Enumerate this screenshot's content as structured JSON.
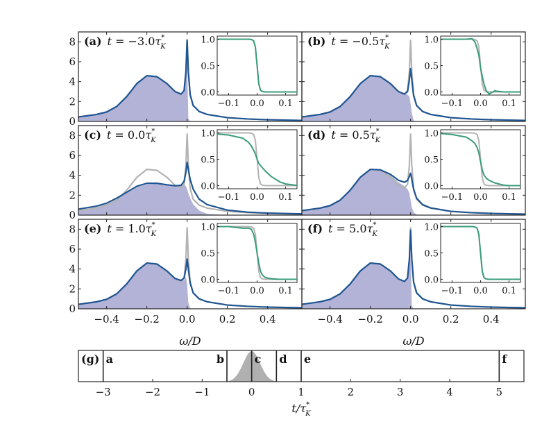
{
  "colors": {
    "equilibrium": "#b3b3b3",
    "spectral": "#1f5592",
    "occupied_fill": "#b3b3d8",
    "distribution": "#3a9c7a",
    "pulse": "#b0b0b0"
  },
  "chart_data": [
    {
      "type": "line",
      "description_axes": {
        "xlabel": "ω/D",
        "xlim": [
          -0.54,
          0.57
        ],
        "ylim": [
          0,
          9
        ],
        "xticks": [
          "−0.4",
          "−0.2",
          "0.0",
          "0.2",
          "0.4"
        ],
        "xtick_values": [
          -0.4,
          -0.2,
          0.0,
          0.2,
          0.4
        ],
        "yticks": [
          "0",
          "2",
          "4",
          "6",
          "8"
        ],
        "ytick_values": [
          0,
          2,
          4,
          6,
          8
        ]
      },
      "inset_axes": {
        "xlim": [
          -0.14,
          0.14
        ],
        "ylim": [
          -0.06,
          1.06
        ],
        "xticks": [
          "−0.1",
          "0.0",
          "0.1"
        ],
        "xtick_values": [
          -0.1,
          0.0,
          0.1
        ],
        "yticks": [
          "0.0",
          "0.5",
          "1.0"
        ],
        "ytick_values": [
          0.0,
          0.5,
          1.0
        ]
      },
      "x": [
        -0.54,
        -0.45,
        -0.4,
        -0.35,
        -0.3,
        -0.25,
        -0.2,
        -0.15,
        -0.1,
        -0.06,
        -0.03,
        -0.015,
        -0.006,
        0,
        0.006,
        0.015,
        0.03,
        0.06,
        0.1,
        0.2,
        0.3,
        0.4,
        0.57
      ],
      "equilibrium": [
        0.45,
        0.7,
        0.95,
        1.5,
        2.5,
        3.8,
        4.6,
        4.5,
        3.8,
        3.0,
        2.75,
        3.1,
        5.0,
        8.2,
        5.0,
        2.7,
        1.6,
        1.0,
        0.7,
        0.38,
        0.25,
        0.17,
        0.1
      ],
      "inset_x": [
        -0.14,
        -0.1,
        -0.05,
        -0.03,
        -0.02,
        -0.012,
        -0.006,
        0,
        0.006,
        0.012,
        0.02,
        0.03,
        0.05,
        0.08,
        0.1,
        0.14
      ],
      "inset_equilibrium": [
        1,
        1,
        1,
        1,
        0.995,
        0.97,
        0.85,
        0.5,
        0.15,
        0.03,
        0.005,
        0,
        0,
        0,
        0,
        0
      ],
      "panels": [
        {
          "label": "(a)",
          "time": "−3.0",
          "spectral": [
            0.45,
            0.7,
            0.95,
            1.5,
            2.5,
            3.8,
            4.6,
            4.5,
            3.8,
            3.0,
            2.75,
            3.1,
            5.0,
            8.2,
            5.0,
            2.7,
            1.6,
            1.0,
            0.7,
            0.38,
            0.25,
            0.17,
            0.1
          ],
          "occupied": [
            0.45,
            0.7,
            0.95,
            1.5,
            2.5,
            3.8,
            4.6,
            4.5,
            3.8,
            3.0,
            2.75,
            3.1,
            5.0,
            6.0,
            0.3,
            0,
            0,
            0,
            0,
            0,
            0,
            0,
            0
          ],
          "distribution": [
            1,
            1,
            1,
            1,
            0.995,
            0.97,
            0.85,
            0.5,
            0.15,
            0.03,
            0.005,
            0,
            0,
            0,
            0,
            0
          ]
        },
        {
          "label": "(b)",
          "time": "−0.5",
          "spectral": [
            0.45,
            0.7,
            0.95,
            1.5,
            2.5,
            3.8,
            4.6,
            4.5,
            3.8,
            3.0,
            2.75,
            3.0,
            4.2,
            5.3,
            4.2,
            2.6,
            1.6,
            1.0,
            0.7,
            0.38,
            0.25,
            0.17,
            0.1
          ],
          "occupied": [
            0.45,
            0.7,
            0.95,
            1.5,
            2.5,
            3.8,
            4.6,
            4.5,
            3.8,
            3.0,
            2.75,
            2.7,
            2.5,
            1.8,
            0.9,
            0.1,
            0,
            0,
            0,
            0,
            0,
            0,
            0
          ],
          "distribution": [
            1,
            1,
            1,
            1.01,
            0.95,
            0.82,
            0.7,
            0.45,
            0.3,
            0.15,
            0.02,
            -0.04,
            0.02,
            0,
            0,
            0
          ]
        },
        {
          "label": "(c)",
          "time": "0.0",
          "spectral": [
            0.6,
            0.9,
            1.2,
            1.7,
            2.3,
            2.9,
            3.2,
            3.2,
            3.05,
            2.95,
            3.0,
            3.4,
            4.3,
            5.3,
            4.6,
            3.6,
            2.6,
            1.6,
            1.05,
            0.5,
            0.3,
            0.2,
            0.12
          ],
          "occupied": [
            0.5,
            0.8,
            1.1,
            1.6,
            2.2,
            2.8,
            3.1,
            3.15,
            3.0,
            2.95,
            3.0,
            3.1,
            2.9,
            2.6,
            2.2,
            1.7,
            1.1,
            0.45,
            0.12,
            0,
            0,
            0,
            0
          ],
          "distribution": [
            0.98,
            0.96,
            0.9,
            0.82,
            0.75,
            0.67,
            0.6,
            0.5,
            0.42,
            0.38,
            0.33,
            0.27,
            0.17,
            0.07,
            0.03,
            0.005
          ]
        },
        {
          "label": "(d)",
          "time": "0.5",
          "spectral": [
            0.45,
            0.7,
            0.95,
            1.5,
            2.5,
            3.8,
            4.6,
            4.55,
            4.1,
            3.5,
            3.3,
            3.5,
            3.9,
            4.2,
            3.6,
            2.6,
            1.7,
            1.05,
            0.72,
            0.38,
            0.25,
            0.17,
            0.1
          ],
          "occupied": [
            0.45,
            0.7,
            0.95,
            1.5,
            2.5,
            3.8,
            4.6,
            4.5,
            4.0,
            3.3,
            2.9,
            2.6,
            2.2,
            1.5,
            0.8,
            0.3,
            0.05,
            0,
            0,
            0,
            0,
            0,
            0
          ],
          "distribution": [
            0.99,
            0.97,
            0.92,
            0.85,
            0.8,
            0.72,
            0.62,
            0.45,
            0.3,
            0.2,
            0.14,
            0.1,
            0.05,
            0.01,
            0,
            0
          ]
        },
        {
          "label": "(e)",
          "time": "1.0",
          "spectral": [
            0.45,
            0.7,
            0.95,
            1.5,
            2.5,
            3.8,
            4.6,
            4.5,
            3.8,
            3.05,
            2.85,
            3.1,
            4.0,
            5.0,
            4.0,
            2.6,
            1.6,
            1.0,
            0.7,
            0.38,
            0.25,
            0.17,
            0.1
          ],
          "occupied": [
            0.45,
            0.7,
            0.95,
            1.5,
            2.5,
            3.8,
            4.6,
            4.5,
            3.8,
            3.0,
            2.8,
            2.9,
            3.2,
            2.5,
            0.6,
            0.05,
            0,
            0,
            0,
            0,
            0,
            0,
            0
          ],
          "distribution": [
            1,
            1,
            0.97,
            0.97,
            0.95,
            0.85,
            0.7,
            0.5,
            0.3,
            0.15,
            0.07,
            0.03,
            0.01,
            0,
            0,
            0
          ]
        },
        {
          "label": "(f)",
          "time": "5.0",
          "spectral": [
            0.45,
            0.7,
            0.95,
            1.5,
            2.5,
            3.8,
            4.6,
            4.5,
            3.8,
            3.0,
            2.75,
            3.1,
            5.0,
            7.9,
            5.0,
            2.7,
            1.6,
            1.0,
            0.7,
            0.38,
            0.25,
            0.17,
            0.1
          ],
          "occupied": [
            0.45,
            0.7,
            0.95,
            1.5,
            2.5,
            3.8,
            4.6,
            4.5,
            3.8,
            3.0,
            2.75,
            3.1,
            5.0,
            5.8,
            0.3,
            0,
            0,
            0,
            0,
            0,
            0,
            0,
            0
          ],
          "distribution": [
            1,
            1,
            1,
            1,
            0.995,
            0.97,
            0.85,
            0.5,
            0.15,
            0.03,
            0.005,
            0,
            0,
            0,
            0,
            0
          ]
        }
      ]
    },
    {
      "type": "timeline",
      "label": "(g)",
      "xlabel": "t/τ*K",
      "xlim": [
        -3.5,
        5.5
      ],
      "xticks": [
        "−3",
        "−2",
        "−1",
        "0",
        "1",
        "2",
        "3",
        "4",
        "5"
      ],
      "xtick_values": [
        -3,
        -2,
        -1,
        0,
        1,
        2,
        3,
        4,
        5
      ],
      "markers": [
        {
          "name": "a",
          "t": -3.0,
          "side": "right"
        },
        {
          "name": "b",
          "t": -0.5,
          "side": "left"
        },
        {
          "name": "c",
          "t": 0.0,
          "side": "right"
        },
        {
          "name": "d",
          "t": 0.5,
          "side": "right"
        },
        {
          "name": "e",
          "t": 1.0,
          "side": "right"
        },
        {
          "name": "f",
          "t": 5.0,
          "side": "right"
        }
      ],
      "pulse": {
        "center": 0.0,
        "sigma": 0.17,
        "support": [
          -0.5,
          0.5
        ]
      }
    }
  ]
}
